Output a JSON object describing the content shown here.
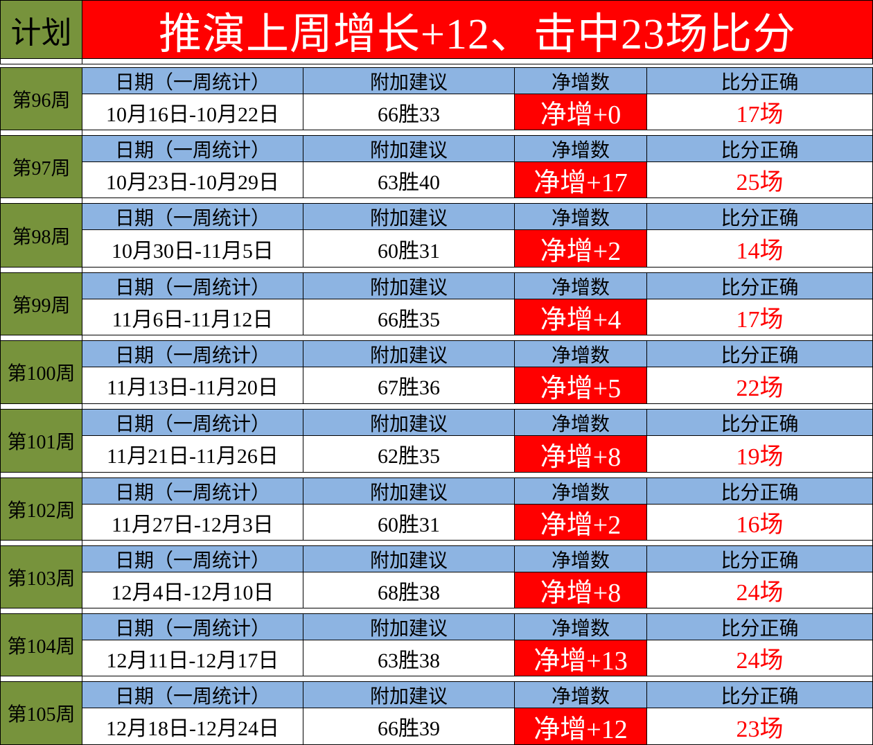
{
  "header": {
    "left_label": "计划",
    "title": "推演上周增长+12、击中23场比分"
  },
  "column_headers": [
    "日期（一周统计）",
    "附加建议",
    "净增数",
    "比分正确"
  ],
  "colors": {
    "olive": "#77933c",
    "red": "#ff0000",
    "blue": "#8db4e2",
    "score_text": "#ff0000"
  },
  "weeks": [
    {
      "week": "第96周",
      "date": "10月16日-10月22日",
      "suggestion": "66胜33",
      "net": "净增+0",
      "score": "17场"
    },
    {
      "week": "第97周",
      "date": "10月23日-10月29日",
      "suggestion": "63胜40",
      "net": "净增+17",
      "score": "25场"
    },
    {
      "week": "第98周",
      "date": "10月30日-11月5日",
      "suggestion": "60胜31",
      "net": "净增+2",
      "score": "14场"
    },
    {
      "week": "第99周",
      "date": "11月6日-11月12日",
      "suggestion": "66胜35",
      "net": "净增+4",
      "score": "17场"
    },
    {
      "week": "第100周",
      "date": "11月13日-11月20日",
      "suggestion": "67胜36",
      "net": "净增+5",
      "score": "22场"
    },
    {
      "week": "第101周",
      "date": "11月21日-11月26日",
      "suggestion": "62胜35",
      "net": "净增+8",
      "score": "19场"
    },
    {
      "week": "第102周",
      "date": "11月27日-12月3日",
      "suggestion": "60胜31",
      "net": "净增+2",
      "score": "16场"
    },
    {
      "week": "第103周",
      "date": "12月4日-12月10日",
      "suggestion": "68胜38",
      "net": "净增+8",
      "score": "24场"
    },
    {
      "week": "第104周",
      "date": "12月11日-12月17日",
      "suggestion": "63胜38",
      "net": "净增+13",
      "score": "24场"
    },
    {
      "week": "第105周",
      "date": "12月18日-12月24日",
      "suggestion": "66胜39",
      "net": "净增+12",
      "score": "23场"
    }
  ]
}
